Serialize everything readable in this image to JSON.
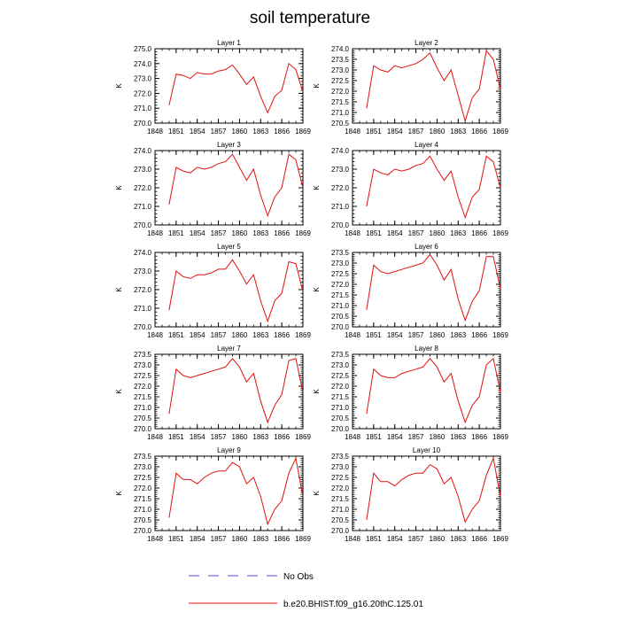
{
  "title": "soil temperature",
  "legend": [
    {
      "label": "No Obs",
      "color": "#4a4ae0",
      "style": "dashed"
    },
    {
      "label": "b.e20.BHIST.f09_g16.20thC.125.01",
      "color": "#e01010",
      "style": "solid"
    }
  ],
  "colors": {
    "series": "#e01010",
    "axis": "#000000"
  },
  "chart_data": [
    {
      "type": "line",
      "title": "Layer 1",
      "ylabel": "K",
      "xlim": [
        1848,
        1869
      ],
      "xticks": [
        1848,
        1851,
        1854,
        1857,
        1860,
        1863,
        1866,
        1869
      ],
      "ylim": [
        270.0,
        275.0
      ],
      "yticks": [
        "270.0",
        "271.0",
        "272.0",
        "273.0",
        "274.0",
        "275.0"
      ],
      "series": [
        {
          "x": [
            1850,
            1851,
            1852,
            1853,
            1854,
            1855,
            1856,
            1857,
            1858,
            1859,
            1860,
            1861,
            1862,
            1863,
            1864,
            1865,
            1866,
            1867,
            1868,
            1869
          ],
          "y": [
            271.2,
            273.3,
            273.2,
            273.0,
            273.4,
            273.3,
            273.3,
            273.5,
            273.6,
            273.9,
            273.3,
            272.6,
            273.1,
            271.8,
            270.7,
            271.8,
            272.2,
            274.0,
            273.6,
            272.1
          ]
        }
      ]
    },
    {
      "type": "line",
      "title": "Layer 2",
      "ylabel": "K",
      "xlim": [
        1848,
        1869
      ],
      "xticks": [
        1848,
        1851,
        1854,
        1857,
        1860,
        1863,
        1866,
        1869
      ],
      "ylim": [
        270.5,
        274.0
      ],
      "yticks": [
        "270.5",
        "271.0",
        "271.5",
        "272.0",
        "272.5",
        "273.0",
        "273.5",
        "274.0"
      ],
      "series": [
        {
          "x": [
            1850,
            1851,
            1852,
            1853,
            1854,
            1855,
            1856,
            1857,
            1858,
            1859,
            1860,
            1861,
            1862,
            1863,
            1864,
            1865,
            1866,
            1867,
            1868,
            1869
          ],
          "y": [
            271.2,
            273.2,
            273.0,
            272.9,
            273.2,
            273.1,
            273.2,
            273.3,
            273.5,
            273.8,
            273.1,
            272.5,
            273.0,
            271.8,
            270.6,
            271.7,
            272.1,
            273.9,
            273.5,
            272.1
          ]
        }
      ]
    },
    {
      "type": "line",
      "title": "Layer 3",
      "ylabel": "K",
      "xlim": [
        1848,
        1869
      ],
      "xticks": [
        1848,
        1851,
        1854,
        1857,
        1860,
        1863,
        1866,
        1869
      ],
      "ylim": [
        270.0,
        274.0
      ],
      "yticks": [
        "270.0",
        "271.0",
        "272.0",
        "273.0",
        "274.0"
      ],
      "series": [
        {
          "x": [
            1850,
            1851,
            1852,
            1853,
            1854,
            1855,
            1856,
            1857,
            1858,
            1859,
            1860,
            1861,
            1862,
            1863,
            1864,
            1865,
            1866,
            1867,
            1868,
            1869
          ],
          "y": [
            271.1,
            273.1,
            272.9,
            272.8,
            273.1,
            273.0,
            273.1,
            273.3,
            273.4,
            273.8,
            273.1,
            272.4,
            273.0,
            271.6,
            270.5,
            271.5,
            272.0,
            273.8,
            273.5,
            272.0
          ]
        }
      ]
    },
    {
      "type": "line",
      "title": "Layer 4",
      "ylabel": "K",
      "xlim": [
        1848,
        1869
      ],
      "xticks": [
        1848,
        1851,
        1854,
        1857,
        1860,
        1863,
        1866,
        1869
      ],
      "ylim": [
        270.0,
        274.0
      ],
      "yticks": [
        "270.0",
        "271.0",
        "272.0",
        "273.0",
        "274.0"
      ],
      "series": [
        {
          "x": [
            1850,
            1851,
            1852,
            1853,
            1854,
            1855,
            1856,
            1857,
            1858,
            1859,
            1860,
            1861,
            1862,
            1863,
            1864,
            1865,
            1866,
            1867,
            1868,
            1869
          ],
          "y": [
            271.0,
            273.0,
            272.8,
            272.7,
            273.0,
            272.9,
            273.0,
            273.2,
            273.3,
            273.7,
            273.0,
            272.4,
            272.9,
            271.5,
            270.4,
            271.5,
            271.9,
            273.7,
            273.4,
            272.0
          ]
        }
      ]
    },
    {
      "type": "line",
      "title": "Layer 5",
      "ylabel": "K",
      "xlim": [
        1848,
        1869
      ],
      "xticks": [
        1848,
        1851,
        1854,
        1857,
        1860,
        1863,
        1866,
        1869
      ],
      "ylim": [
        270.0,
        274.0
      ],
      "yticks": [
        "270.0",
        "271.0",
        "272.0",
        "273.0",
        "274.0"
      ],
      "series": [
        {
          "x": [
            1850,
            1851,
            1852,
            1853,
            1854,
            1855,
            1856,
            1857,
            1858,
            1859,
            1860,
            1861,
            1862,
            1863,
            1864,
            1865,
            1866,
            1867,
            1868,
            1869
          ],
          "y": [
            270.9,
            273.0,
            272.7,
            272.6,
            272.8,
            272.8,
            272.9,
            273.1,
            273.1,
            273.6,
            273.0,
            272.3,
            272.8,
            271.4,
            270.3,
            271.4,
            271.8,
            273.5,
            273.4,
            271.9
          ]
        }
      ]
    },
    {
      "type": "line",
      "title": "Layer 6",
      "ylabel": "K",
      "xlim": [
        1848,
        1869
      ],
      "xticks": [
        1848,
        1851,
        1854,
        1857,
        1860,
        1863,
        1866,
        1869
      ],
      "ylim": [
        270.0,
        273.5
      ],
      "yticks": [
        "270.0",
        "270.5",
        "271.0",
        "271.5",
        "272.0",
        "272.5",
        "273.0",
        "273.5"
      ],
      "series": [
        {
          "x": [
            1850,
            1851,
            1852,
            1853,
            1854,
            1855,
            1856,
            1857,
            1858,
            1859,
            1860,
            1861,
            1862,
            1863,
            1864,
            1865,
            1866,
            1867,
            1868,
            1869
          ],
          "y": [
            270.8,
            272.9,
            272.6,
            272.5,
            272.6,
            272.7,
            272.8,
            272.9,
            273.0,
            273.4,
            272.9,
            272.2,
            272.7,
            271.3,
            270.3,
            271.2,
            271.7,
            273.3,
            273.3,
            271.8
          ]
        }
      ]
    },
    {
      "type": "line",
      "title": "Layer 7",
      "ylabel": "K",
      "xlim": [
        1848,
        1869
      ],
      "xticks": [
        1848,
        1851,
        1854,
        1857,
        1860,
        1863,
        1866,
        1869
      ],
      "ylim": [
        270.0,
        273.5
      ],
      "yticks": [
        "270.0",
        "270.5",
        "271.0",
        "271.5",
        "272.0",
        "272.5",
        "273.0",
        "273.5"
      ],
      "series": [
        {
          "x": [
            1850,
            1851,
            1852,
            1853,
            1854,
            1855,
            1856,
            1857,
            1858,
            1859,
            1860,
            1861,
            1862,
            1863,
            1864,
            1865,
            1866,
            1867,
            1868,
            1869
          ],
          "y": [
            270.7,
            272.8,
            272.5,
            272.4,
            272.5,
            272.6,
            272.7,
            272.8,
            272.9,
            273.3,
            272.9,
            272.2,
            272.6,
            271.3,
            270.3,
            271.1,
            271.6,
            273.2,
            273.3,
            271.7
          ]
        }
      ]
    },
    {
      "type": "line",
      "title": "Layer 8",
      "ylabel": "K",
      "xlim": [
        1848,
        1869
      ],
      "xticks": [
        1848,
        1851,
        1854,
        1857,
        1860,
        1863,
        1866,
        1869
      ],
      "ylim": [
        270.0,
        273.5
      ],
      "yticks": [
        "270.0",
        "270.5",
        "271.0",
        "271.5",
        "272.0",
        "272.5",
        "273.0",
        "273.5"
      ],
      "series": [
        {
          "x": [
            1850,
            1851,
            1852,
            1853,
            1854,
            1855,
            1856,
            1857,
            1858,
            1859,
            1860,
            1861,
            1862,
            1863,
            1864,
            1865,
            1866,
            1867,
            1868,
            1869
          ],
          "y": [
            270.7,
            272.8,
            272.5,
            272.4,
            272.4,
            272.6,
            272.7,
            272.8,
            272.9,
            273.3,
            272.9,
            272.2,
            272.6,
            271.3,
            270.3,
            271.1,
            271.5,
            273.0,
            273.3,
            271.7
          ]
        }
      ]
    },
    {
      "type": "line",
      "title": "Layer 9",
      "ylabel": "K",
      "xlim": [
        1848,
        1869
      ],
      "xticks": [
        1848,
        1851,
        1854,
        1857,
        1860,
        1863,
        1866,
        1869
      ],
      "ylim": [
        270.0,
        273.5
      ],
      "yticks": [
        "270.0",
        "270.5",
        "271.0",
        "271.5",
        "272.0",
        "272.5",
        "273.0",
        "273.5"
      ],
      "series": [
        {
          "x": [
            1850,
            1851,
            1852,
            1853,
            1854,
            1855,
            1856,
            1857,
            1858,
            1859,
            1860,
            1861,
            1862,
            1863,
            1864,
            1865,
            1866,
            1867,
            1868,
            1869
          ],
          "y": [
            270.6,
            272.7,
            272.4,
            272.4,
            272.2,
            272.5,
            272.7,
            272.8,
            272.8,
            273.2,
            273.0,
            272.2,
            272.5,
            271.6,
            270.3,
            271.0,
            271.4,
            272.7,
            273.4,
            271.6
          ]
        }
      ]
    },
    {
      "type": "line",
      "title": "Layer 10",
      "ylabel": "K",
      "xlim": [
        1848,
        1869
      ],
      "xticks": [
        1848,
        1851,
        1854,
        1857,
        1860,
        1863,
        1866,
        1869
      ],
      "ylim": [
        270.0,
        273.5
      ],
      "yticks": [
        "270.0",
        "270.5",
        "271.0",
        "271.5",
        "272.0",
        "272.5",
        "273.0",
        "273.5"
      ],
      "series": [
        {
          "x": [
            1850,
            1851,
            1852,
            1853,
            1854,
            1855,
            1856,
            1857,
            1858,
            1859,
            1860,
            1861,
            1862,
            1863,
            1864,
            1865,
            1866,
            1867,
            1868,
            1869
          ],
          "y": [
            270.5,
            272.7,
            272.3,
            272.3,
            272.1,
            272.4,
            272.6,
            272.7,
            272.7,
            273.1,
            272.9,
            272.2,
            272.5,
            271.6,
            270.4,
            271.0,
            271.4,
            272.6,
            273.4,
            271.6
          ]
        }
      ]
    }
  ]
}
